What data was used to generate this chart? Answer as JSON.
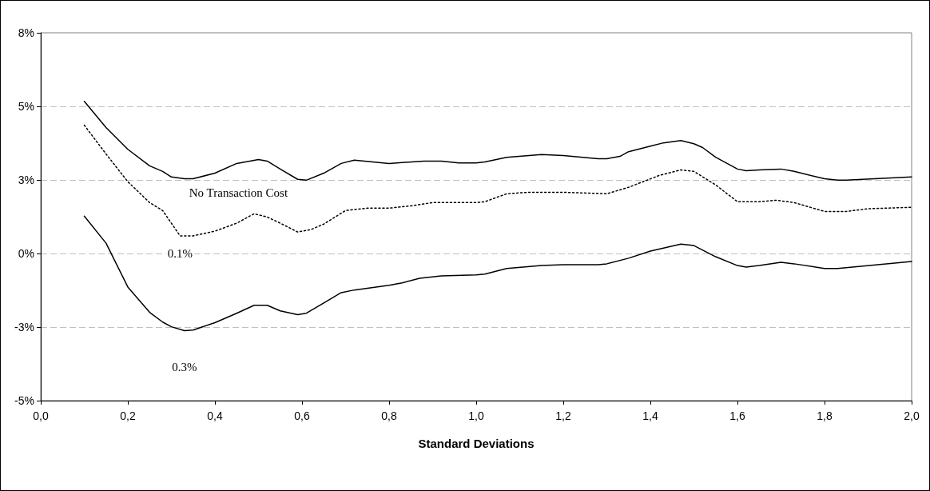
{
  "chart_data": {
    "type": "line",
    "xlabel": "Standard Deviations",
    "xlim": [
      0,
      2
    ],
    "xticks": [
      {
        "value": 0,
        "label": "0,0"
      },
      {
        "value": 0.2,
        "label": "0,2"
      },
      {
        "value": 0.4,
        "label": "0,4"
      },
      {
        "value": 0.6,
        "label": "0,6"
      },
      {
        "value": 0.8,
        "label": "0,8"
      },
      {
        "value": 1,
        "label": "1,0"
      },
      {
        "value": 1.2,
        "label": "1,2"
      },
      {
        "value": 1.4,
        "label": "1,4"
      },
      {
        "value": 1.6,
        "label": "1,6"
      },
      {
        "value": 1.8,
        "label": "1,8"
      },
      {
        "value": 2,
        "label": "2,0"
      }
    ],
    "ylim": [
      -5,
      7.5
    ],
    "yticks": [
      {
        "value": -5,
        "label": "-5%"
      },
      {
        "value": -2.5,
        "label": "-3%"
      },
      {
        "value": 0,
        "label": "0%"
      },
      {
        "value": 2.5,
        "label": "3%"
      },
      {
        "value": 5,
        "label": "5%"
      },
      {
        "value": 7.5,
        "label": "8%"
      }
    ],
    "grid": "y",
    "marker": "none",
    "series": [
      {
        "name": "No Transaction Cost",
        "color": "#000000",
        "line_style": "solid",
        "x": [
          0.1,
          0.15,
          0.2,
          0.25,
          0.28,
          0.3,
          0.33,
          0.35,
          0.4,
          0.45,
          0.5,
          0.52,
          0.55,
          0.59,
          0.61,
          0.65,
          0.69,
          0.72,
          0.8,
          0.88,
          0.92,
          0.96,
          1.0,
          1.02,
          1.07,
          1.15,
          1.2,
          1.28,
          1.3,
          1.33,
          1.35,
          1.4,
          1.43,
          1.47,
          1.5,
          1.52,
          1.55,
          1.6,
          1.62,
          1.65,
          1.7,
          1.73,
          1.8,
          1.83,
          1.85,
          2.0
        ],
        "values": [
          5.17,
          4.28,
          3.54,
          2.98,
          2.79,
          2.6,
          2.54,
          2.54,
          2.73,
          3.06,
          3.19,
          3.14,
          2.87,
          2.52,
          2.49,
          2.73,
          3.06,
          3.17,
          3.06,
          3.14,
          3.14,
          3.08,
          3.08,
          3.11,
          3.27,
          3.36,
          3.33,
          3.22,
          3.22,
          3.3,
          3.46,
          3.65,
          3.76,
          3.84,
          3.73,
          3.6,
          3.27,
          2.87,
          2.81,
          2.84,
          2.87,
          2.79,
          2.54,
          2.49,
          2.49,
          2.6
        ]
      },
      {
        "name": "0.1%",
        "color": "#000000",
        "line_style": "dotted",
        "x": [
          0.1,
          0.15,
          0.2,
          0.25,
          0.28,
          0.32,
          0.35,
          0.4,
          0.45,
          0.49,
          0.52,
          0.55,
          0.59,
          0.62,
          0.65,
          0.7,
          0.75,
          0.8,
          0.85,
          0.9,
          1.0,
          1.02,
          1.07,
          1.12,
          1.2,
          1.3,
          1.35,
          1.42,
          1.47,
          1.5,
          1.55,
          1.6,
          1.65,
          1.69,
          1.73,
          1.8,
          1.85,
          1.9,
          2.0
        ],
        "values": [
          4.36,
          3.38,
          2.44,
          1.73,
          1.46,
          0.6,
          0.6,
          0.76,
          1.03,
          1.35,
          1.24,
          1.03,
          0.73,
          0.81,
          1.0,
          1.46,
          1.54,
          1.54,
          1.62,
          1.73,
          1.73,
          1.76,
          2.03,
          2.08,
          2.08,
          2.03,
          2.25,
          2.65,
          2.84,
          2.79,
          2.33,
          1.76,
          1.76,
          1.81,
          1.73,
          1.43,
          1.43,
          1.52,
          1.57
        ]
      },
      {
        "name": "0.3%",
        "color": "#000000",
        "line_style": "solid",
        "x": [
          0.1,
          0.15,
          0.2,
          0.25,
          0.28,
          0.3,
          0.33,
          0.35,
          0.4,
          0.45,
          0.49,
          0.52,
          0.55,
          0.59,
          0.61,
          0.65,
          0.69,
          0.72,
          0.8,
          0.83,
          0.87,
          0.92,
          1.0,
          1.02,
          1.07,
          1.15,
          1.2,
          1.28,
          1.3,
          1.35,
          1.4,
          1.47,
          1.5,
          1.55,
          1.6,
          1.62,
          1.65,
          1.7,
          1.73,
          1.8,
          1.83,
          2.0
        ],
        "values": [
          1.27,
          0.35,
          -1.14,
          -2.0,
          -2.33,
          -2.49,
          -2.62,
          -2.6,
          -2.35,
          -2.03,
          -1.76,
          -1.76,
          -1.95,
          -2.08,
          -2.03,
          -1.68,
          -1.33,
          -1.24,
          -1.08,
          -1.0,
          -0.84,
          -0.76,
          -0.73,
          -0.7,
          -0.51,
          -0.41,
          -0.38,
          -0.38,
          -0.35,
          -0.16,
          0.08,
          0.32,
          0.27,
          -0.11,
          -0.41,
          -0.46,
          -0.41,
          -0.3,
          -0.35,
          -0.51,
          -0.51,
          -0.27
        ]
      }
    ]
  }
}
